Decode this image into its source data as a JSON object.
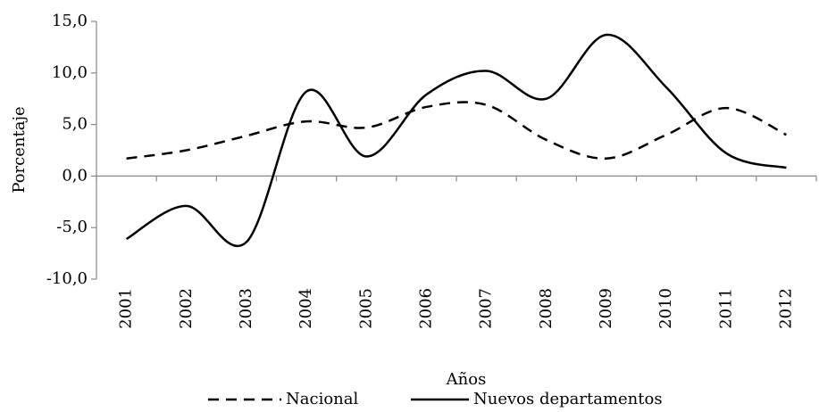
{
  "chart_data": {
    "type": "line",
    "x_label": "Años",
    "y_label": "Porcentaje",
    "categories": [
      "2001",
      "2002",
      "2003",
      "2004",
      "2005",
      "2006",
      "2007",
      "2008",
      "2009",
      "2010",
      "2011",
      "2012"
    ],
    "series": [
      {
        "name": "Nacional",
        "color": "#000000",
        "dash": true,
        "values": [
          1.7,
          2.5,
          3.9,
          5.3,
          4.7,
          6.7,
          6.9,
          3.5,
          1.7,
          4.0,
          6.6,
          4.0
        ]
      },
      {
        "name": "Nuevos departamentos",
        "color": "#000000",
        "dash": false,
        "values": [
          -6.1,
          -2.9,
          -6.4,
          8.2,
          1.9,
          7.9,
          10.2,
          7.5,
          13.7,
          8.6,
          2.2,
          0.8
        ]
      }
    ],
    "ylim": [
      -10,
      15
    ],
    "yticks": [
      {
        "value": -10,
        "label": "-10,0"
      },
      {
        "value": -5,
        "label": "-5,0"
      },
      {
        "value": 0,
        "label": "0,0"
      },
      {
        "value": 5,
        "label": "5,0"
      },
      {
        "value": 10,
        "label": "10,0"
      },
      {
        "value": 15,
        "label": "15,0"
      }
    ],
    "grid": false,
    "legend": "bottom"
  }
}
